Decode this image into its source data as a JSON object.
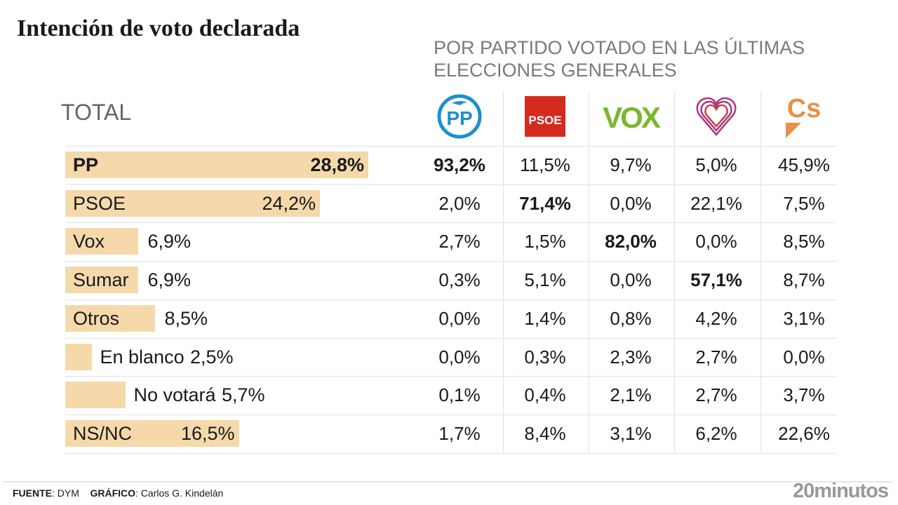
{
  "chart_data": {
    "type": "table",
    "title": "Intención de voto declarada",
    "subtitle": "POR PARTIDO VOTADO EN LAS ÚLTIMAS ELECCIONES GENERALES",
    "total_label": "TOTAL",
    "bar_color": "#f5d9aa",
    "columns": [
      {
        "name": "PP",
        "logo": "pp-logo",
        "color": "#1d8fd0"
      },
      {
        "name": "PSOE",
        "logo": "psoe-logo",
        "color": "#d52b1e"
      },
      {
        "name": "VOX",
        "logo": "vox-logo",
        "color": "#7bb62b"
      },
      {
        "name": "Sumar",
        "logo": "sumar-heart-logo",
        "color": "#c03a6b"
      },
      {
        "name": "Cs",
        "logo": "cs-logo",
        "color": "#e8904a"
      }
    ],
    "rows": [
      {
        "label": "PP",
        "total": 28.8,
        "total_text": "28,8%",
        "bold": true,
        "cells": [
          "93,2%",
          "11,5%",
          "9,7%",
          "5,0%",
          "45,9%"
        ],
        "highlight": 0
      },
      {
        "label": "PSOE",
        "total": 24.2,
        "total_text": "24,2%",
        "cells": [
          "2,0%",
          "71,4%",
          "0,0%",
          "22,1%",
          "7,5%"
        ],
        "highlight": 1
      },
      {
        "label": "Vox",
        "total": 6.9,
        "total_text": "6,9%",
        "cells": [
          "2,7%",
          "1,5%",
          "82,0%",
          "0,0%",
          "8,5%"
        ],
        "highlight": 2
      },
      {
        "label": "Sumar",
        "total": 6.9,
        "total_text": "6,9%",
        "cells": [
          "0,3%",
          "5,1%",
          "0,0%",
          "57,1%",
          "8,7%"
        ],
        "highlight": 3
      },
      {
        "label": "Otros",
        "total": 8.5,
        "total_text": "8,5%",
        "cells": [
          "0,0%",
          "1,4%",
          "0,8%",
          "4,2%",
          "3,1%"
        ]
      },
      {
        "label": "En blanco",
        "total": 2.5,
        "total_text": "2,5%",
        "cells": [
          "0,0%",
          "0,3%",
          "2,3%",
          "2,7%",
          "0,0%"
        ]
      },
      {
        "label": "No votará",
        "total": 5.7,
        "total_text": "5,7%",
        "cells": [
          "0,1%",
          "0,4%",
          "2,1%",
          "2,7%",
          "3,7%"
        ]
      },
      {
        "label": "NS/NC",
        "total": 16.5,
        "total_text": "16,5%",
        "cells": [
          "1,7%",
          "8,4%",
          "3,1%",
          "6,2%",
          "22,6%"
        ]
      }
    ]
  },
  "footer": {
    "source_label": "FUENTE",
    "source": ": DYM",
    "graphic_label": "GRÁFICO",
    "graphic": ": Carlos G. Kindelán",
    "brand": "20minutos"
  }
}
